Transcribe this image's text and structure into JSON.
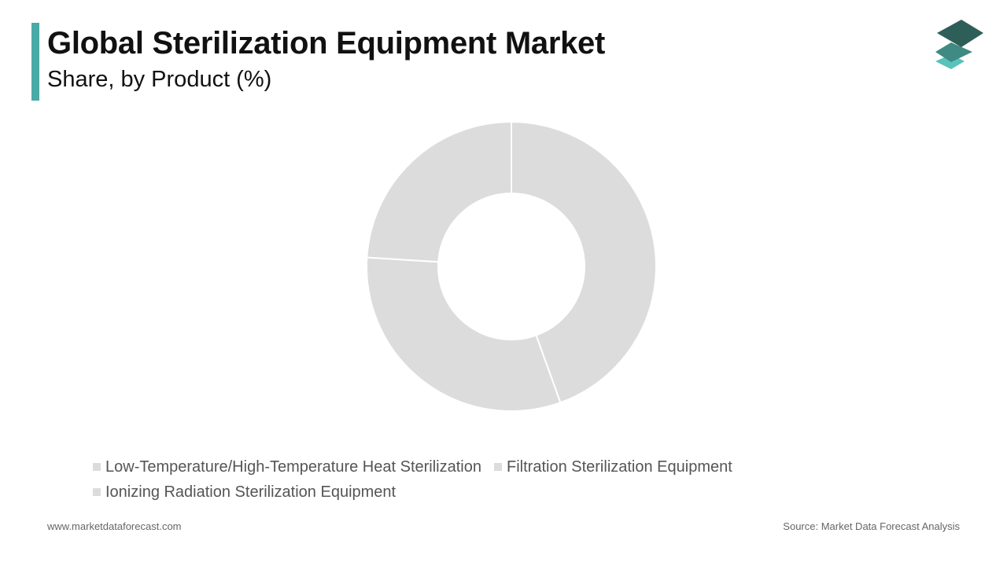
{
  "header": {
    "title": "Global Sterilization Equipment Market",
    "subtitle": "Share, by Product (%)",
    "accent_color": "#4aaaa8"
  },
  "logo": {
    "icon": "stacked-layers-icon",
    "colors": [
      "#2e5e58",
      "#3f8a82",
      "#58c2bb"
    ]
  },
  "chart_data": {
    "type": "pie",
    "donut": true,
    "title": "Global Sterilization Equipment Market",
    "subtitle": "Share, by Product (%)",
    "categories": [
      "Low-Temperature/High-Temperature Heat Sterilization",
      "Filtration Sterilization Equipment",
      "Ionizing Radiation Sterilization Equipment"
    ],
    "values": [
      44.5,
      31.5,
      24
    ],
    "slice_color": "#dcdcdc",
    "legend_placement": "bottom"
  },
  "footer": {
    "website": "www.marketdataforecast.com",
    "source": "Source: Market Data Forecast Analysis"
  }
}
